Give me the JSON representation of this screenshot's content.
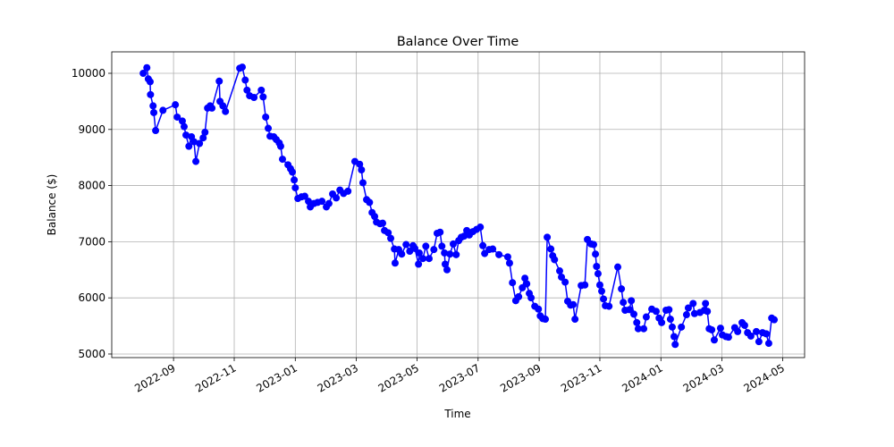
{
  "chart_data": {
    "type": "line",
    "title": "Balance Over Time",
    "x_label": "Time",
    "y_label": "Balance ($)",
    "color": "#0000ff",
    "grid": true,
    "marker": "circle",
    "xlim": [
      2022.498,
      2024.393
    ],
    "ylim": [
      4936,
      10382
    ],
    "xticks": [
      {
        "value": 2022.667,
        "label": "2022-09"
      },
      {
        "value": 2022.833,
        "label": "2022-11"
      },
      {
        "value": 2023.0,
        "label": "2023-01"
      },
      {
        "value": 2023.167,
        "label": "2023-03"
      },
      {
        "value": 2023.333,
        "label": "2023-05"
      },
      {
        "value": 2023.5,
        "label": "2023-07"
      },
      {
        "value": 2023.667,
        "label": "2023-09"
      },
      {
        "value": 2023.833,
        "label": "2023-11"
      },
      {
        "value": 2024.0,
        "label": "2024-01"
      },
      {
        "value": 2024.167,
        "label": "2024-03"
      },
      {
        "value": 2024.333,
        "label": "2024-05"
      }
    ],
    "yticks": [
      5000,
      6000,
      7000,
      8000,
      9000,
      10000
    ],
    "x": [
      2022.584,
      2022.594,
      2022.598,
      2022.603,
      2022.604,
      2022.611,
      2022.613,
      2022.618,
      2022.638,
      2022.672,
      2022.677,
      2022.691,
      2022.696,
      2022.701,
      2022.709,
      2022.716,
      2022.723,
      2022.728,
      2022.738,
      2022.748,
      2022.753,
      2022.76,
      2022.767,
      2022.772,
      2022.792,
      2022.794,
      2022.802,
      2022.809,
      2022.848,
      2022.855,
      2022.863,
      2022.868,
      2022.875,
      2022.887,
      2022.907,
      2022.912,
      2022.919,
      2022.926,
      2022.931,
      2022.941,
      2022.948,
      2022.956,
      2022.96,
      2022.965,
      2022.98,
      2022.987,
      2022.992,
      2022.997,
      2023.0,
      2023.007,
      2023.017,
      2023.026,
      2023.036,
      2023.041,
      2023.051,
      2023.061,
      2023.073,
      2023.085,
      2023.092,
      2023.102,
      2023.112,
      2023.122,
      2023.132,
      2023.144,
      2023.163,
      2023.176,
      2023.181,
      2023.185,
      2023.195,
      2023.203,
      2023.21,
      2023.217,
      2023.222,
      2023.232,
      2023.239,
      2023.244,
      2023.254,
      2023.261,
      2023.271,
      2023.273,
      2023.283,
      2023.291,
      2023.303,
      2023.313,
      2023.322,
      2023.327,
      2023.337,
      2023.339,
      2023.349,
      2023.357,
      2023.366,
      2023.379,
      2023.388,
      2023.396,
      2023.401,
      2023.408,
      2023.41,
      2023.415,
      2023.423,
      2023.432,
      2023.44,
      2023.447,
      2023.454,
      2023.462,
      2023.469,
      2023.476,
      2023.486,
      2023.496,
      2023.506,
      2023.513,
      2023.518,
      2023.53,
      2023.54,
      2023.557,
      2023.581,
      2023.586,
      2023.594,
      2023.603,
      2023.611,
      2023.621,
      2023.628,
      2023.633,
      2023.64,
      2023.645,
      2023.655,
      2023.665,
      2023.67,
      2023.677,
      2023.684,
      2023.689,
      2023.699,
      2023.704,
      2023.709,
      2023.723,
      2023.728,
      2023.738,
      2023.745,
      2023.753,
      2023.76,
      2023.765,
      2023.782,
      2023.792,
      2023.799,
      2023.809,
      2023.816,
      2023.821,
      2023.824,
      2023.828,
      2023.833,
      2023.838,
      2023.843,
      2023.848,
      2023.858,
      2023.882,
      2023.892,
      2023.897,
      2023.902,
      2023.914,
      2023.919,
      2023.926,
      2023.934,
      2023.938,
      2023.953,
      2023.96,
      2023.975,
      2023.987,
      2023.995,
      2024.002,
      2024.014,
      2024.022,
      2024.026,
      2024.031,
      2024.036,
      2024.039,
      2024.056,
      2024.07,
      2024.075,
      2024.088,
      2024.092,
      2024.107,
      2024.119,
      2024.122,
      2024.127,
      2024.132,
      2024.139,
      2024.146,
      2024.163,
      2024.168,
      2024.178,
      2024.185,
      2024.202,
      2024.21,
      2024.222,
      2024.229,
      2024.237,
      2024.246,
      2024.261,
      2024.268,
      2024.278,
      2024.288,
      2024.295,
      2024.303,
      2024.31
    ],
    "values": [
      10000,
      10100,
      9900,
      9850,
      9620,
      9420,
      9300,
      8980,
      9340,
      9440,
      9220,
      9150,
      9050,
      8900,
      8700,
      8870,
      8780,
      8430,
      8750,
      8850,
      8950,
      9380,
      9420,
      9380,
      9860,
      9500,
      9420,
      9320,
      10090,
      10110,
      9880,
      9700,
      9600,
      9570,
      9700,
      9580,
      9220,
      9020,
      8880,
      8870,
      8820,
      8760,
      8700,
      8470,
      8370,
      8300,
      8240,
      8100,
      7960,
      7770,
      7800,
      7810,
      7720,
      7620,
      7680,
      7700,
      7720,
      7620,
      7680,
      7850,
      7780,
      7920,
      7860,
      7900,
      8430,
      8380,
      8280,
      8050,
      7750,
      7700,
      7520,
      7450,
      7350,
      7320,
      7330,
      7200,
      7160,
      7060,
      6870,
      6620,
      6860,
      6780,
      6950,
      6830,
      6930,
      6880,
      6600,
      6800,
      6700,
      6920,
      6700,
      6860,
      7150,
      7170,
      6920,
      6800,
      6600,
      6500,
      6780,
      6960,
      6770,
      7020,
      7080,
      7100,
      7200,
      7120,
      7180,
      7220,
      7260,
      6930,
      6790,
      6860,
      6870,
      6770,
      6730,
      6620,
      6270,
      5950,
      6020,
      6180,
      6350,
      6250,
      6080,
      6000,
      5850,
      5800,
      5680,
      5630,
      5620,
      7080,
      6870,
      6750,
      6680,
      6480,
      6370,
      6280,
      5940,
      5870,
      5880,
      5620,
      6220,
      6230,
      7040,
      6960,
      6950,
      6780,
      6560,
      6430,
      6230,
      6120,
      5980,
      5860,
      5850,
      6550,
      6160,
      5920,
      5780,
      5790,
      5950,
      5710,
      5560,
      5450,
      5450,
      5660,
      5800,
      5760,
      5640,
      5560,
      5780,
      5790,
      5620,
      5480,
      5310,
      5170,
      5480,
      5700,
      5820,
      5900,
      5720,
      5740,
      5780,
      5900,
      5760,
      5450,
      5430,
      5250,
      5460,
      5340,
      5310,
      5300,
      5470,
      5400,
      5560,
      5510,
      5380,
      5320,
      5400,
      5220,
      5380,
      5360,
      5190,
      5640,
      5610
    ]
  }
}
